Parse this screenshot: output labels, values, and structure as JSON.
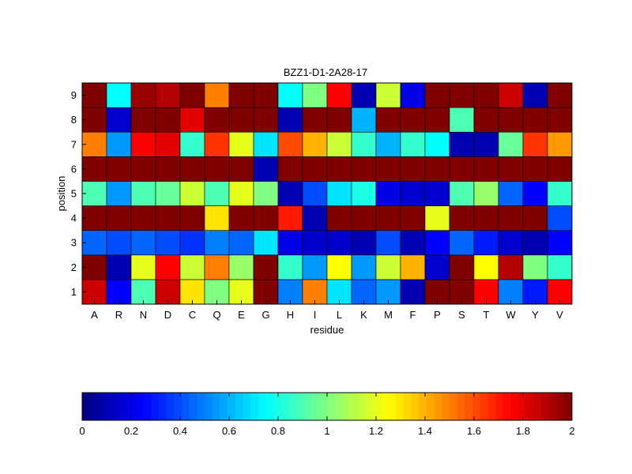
{
  "chart_data": {
    "type": "heatmap",
    "title": "BZZ1-D1-2A28-17",
    "xlabel": "residue",
    "ylabel": "position",
    "x_categories": [
      "A",
      "R",
      "N",
      "D",
      "C",
      "Q",
      "E",
      "G",
      "H",
      "I",
      "L",
      "K",
      "M",
      "F",
      "P",
      "S",
      "T",
      "W",
      "Y",
      "V"
    ],
    "y_categories": [
      "1",
      "2",
      "3",
      "4",
      "5",
      "6",
      "7",
      "8",
      "9"
    ],
    "values": [
      [
        1.85,
        0.25,
        0.9,
        1.85,
        1.3,
        1.0,
        1.2,
        2.0,
        0.5,
        1.5,
        0.7,
        0.45,
        0.55,
        0.1,
        2.0,
        2.0,
        1.75,
        0.5,
        0.3,
        1.75
      ],
      [
        2.0,
        0.1,
        1.2,
        1.75,
        1.15,
        1.5,
        1.05,
        2.0,
        0.85,
        0.55,
        1.25,
        0.55,
        1.15,
        1.4,
        0.15,
        2.0,
        1.25,
        1.9,
        1.0,
        0.85
      ],
      [
        0.45,
        0.4,
        0.45,
        0.4,
        0.35,
        0.5,
        0.45,
        0.7,
        0.2,
        0.15,
        0.15,
        0.1,
        0.4,
        0.1,
        0.25,
        0.45,
        0.3,
        0.15,
        0.1,
        0.25
      ],
      [
        2.0,
        2.0,
        2.0,
        2.0,
        2.0,
        1.3,
        2.0,
        2.0,
        1.7,
        0.1,
        2.0,
        2.0,
        2.0,
        2.0,
        1.2,
        2.0,
        2.0,
        2.0,
        2.0,
        0.4
      ],
      [
        0.9,
        0.55,
        0.9,
        0.95,
        1.15,
        0.9,
        1.2,
        1.0,
        0.1,
        0.4,
        0.7,
        0.8,
        0.2,
        0.15,
        0.15,
        0.9,
        1.05,
        0.45,
        0.25,
        0.85
      ],
      [
        2.0,
        2.0,
        2.0,
        2.0,
        2.0,
        2.0,
        2.0,
        0.1,
        2.0,
        2.0,
        2.0,
        2.0,
        2.0,
        2.0,
        2.0,
        2.0,
        2.0,
        2.0,
        2.0,
        2.0
      ],
      [
        1.5,
        0.55,
        1.75,
        1.8,
        0.85,
        1.65,
        1.2,
        0.7,
        1.6,
        1.4,
        1.15,
        0.85,
        0.6,
        0.85,
        0.75,
        0.1,
        0.1,
        0.95,
        1.65,
        1.45
      ],
      [
        2.0,
        0.15,
        2.0,
        2.0,
        1.8,
        2.0,
        2.0,
        2.0,
        0.1,
        2.0,
        2.0,
        0.6,
        2.0,
        2.0,
        2.0,
        0.9,
        2.0,
        2.0,
        2.0,
        2.0
      ],
      [
        2.0,
        0.75,
        1.95,
        1.9,
        2.0,
        1.5,
        2.0,
        2.0,
        0.75,
        1.0,
        1.75,
        0.1,
        1.15,
        0.2,
        2.0,
        2.0,
        2.0,
        1.85,
        0.1,
        2.0
      ]
    ],
    "colormap": "jet",
    "clim": [
      0,
      2
    ],
    "colorbar": {
      "ticks": [
        "0",
        "0.2",
        "0.4",
        "0.6",
        "0.8",
        "1",
        "1.2",
        "1.4",
        "1.6",
        "1.8",
        "2"
      ],
      "placement": "bottom"
    },
    "grid": false
  }
}
